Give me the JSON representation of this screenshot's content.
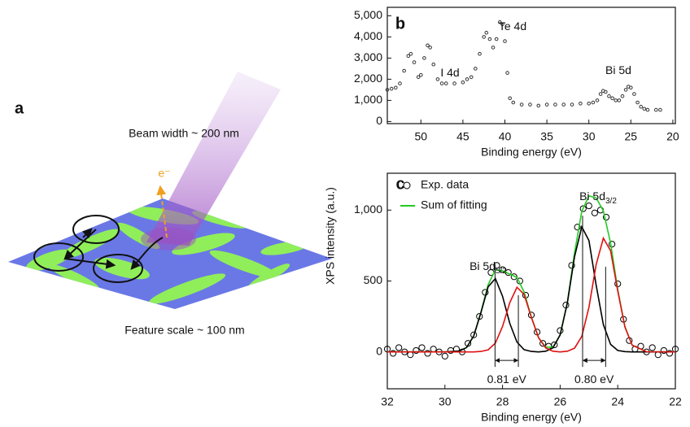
{
  "panel_a": {
    "label": "a",
    "beam": "Beam width ~ 200 nm",
    "electron": "e⁻",
    "feature": "Feature scale ~ 100 nm"
  },
  "chart_data": [
    {
      "type": "scatter",
      "panel_label": "b",
      "xlabel": "Binding energy (eV)",
      "xlim": [
        54,
        19.7
      ],
      "xticks": [
        50,
        45,
        40,
        35,
        30,
        25,
        20
      ],
      "ylim": [
        -100,
        5400
      ],
      "yticks": [
        0,
        {
          "value": 1000,
          "label": "1,000"
        },
        {
          "value": 2000,
          "label": "2,000"
        },
        {
          "value": 3000,
          "label": "3,000"
        },
        {
          "value": 4000,
          "label": "4,000"
        },
        {
          "value": 5000,
          "label": "5,000"
        }
      ],
      "series": [
        {
          "color": "#333333",
          "marker": "open-circle",
          "x": [
            54,
            53.5,
            53,
            52.5,
            52,
            51.5,
            51.2,
            50.8,
            50.3,
            50,
            49.6,
            49.2,
            48.9,
            48.5,
            48,
            47.5,
            47,
            46,
            45,
            44.5,
            44,
            43.5,
            43,
            42.5,
            42.2,
            41.8,
            41.4,
            41,
            40.6,
            40.3,
            40,
            39.7,
            39.4,
            39,
            38,
            37,
            36,
            35,
            34,
            33,
            32,
            31,
            30,
            29.5,
            29,
            28.6,
            28.3,
            28,
            27.6,
            27.2,
            26.8,
            26.4,
            26,
            25.6,
            25.3,
            25,
            24.6,
            24.2,
            23.8,
            23.4,
            23,
            22,
            21.5
          ],
          "values": [
            1500,
            1550,
            1600,
            1800,
            2400,
            3100,
            3200,
            2800,
            2100,
            2200,
            3000,
            3600,
            3500,
            2700,
            2000,
            1800,
            1800,
            1800,
            1850,
            2000,
            2100,
            2500,
            3200,
            4000,
            4200,
            3900,
            3500,
            3900,
            4700,
            4600,
            3800,
            2300,
            1100,
            900,
            800,
            800,
            750,
            800,
            800,
            800,
            800,
            850,
            850,
            900,
            1000,
            1300,
            1450,
            1400,
            1200,
            1100,
            1000,
            1000,
            1200,
            1500,
            1650,
            1600,
            1300,
            900,
            700,
            600,
            550,
            550,
            550
          ]
        }
      ],
      "annotations": [
        {
          "text": "I 4d"
        },
        {
          "text": "Te 4d"
        },
        {
          "text": "Bi 5d"
        }
      ]
    },
    {
      "type": "scatter",
      "panel_label": "c",
      "xlabel": "Binding energy (eV)",
      "ylabel": "XPS intensity (a.u.)",
      "xlim": [
        32,
        22
      ],
      "xticks": [
        32,
        30,
        28,
        26,
        24,
        22
      ],
      "ylim": [
        -260,
        1260
      ],
      "yticks": [
        0,
        500,
        {
          "value": 1000,
          "label": "1,000"
        }
      ],
      "legend": "upper left",
      "series": [
        {
          "name": "Exp. data",
          "color": "#000000",
          "marker": "open-circle",
          "x": [
            32,
            31.8,
            31.6,
            31.4,
            31.2,
            31,
            30.8,
            30.6,
            30.4,
            30.2,
            30,
            29.8,
            29.6,
            29.4,
            29.2,
            29,
            28.8,
            28.6,
            28.4,
            28.2,
            28,
            27.8,
            27.6,
            27.4,
            27.2,
            27,
            26.8,
            26.6,
            26.4,
            26.2,
            26,
            25.8,
            25.6,
            25.4,
            25.2,
            25,
            24.8,
            24.6,
            24.4,
            24.2,
            24,
            23.8,
            23.6,
            23.4,
            23.2,
            23,
            22.8,
            22.6,
            22.4,
            22.2,
            22
          ],
          "values": [
            20,
            -10,
            30,
            0,
            -20,
            10,
            30,
            -10,
            20,
            0,
            -30,
            10,
            20,
            0,
            60,
            120,
            250,
            420,
            560,
            610,
            580,
            560,
            530,
            500,
            400,
            260,
            140,
            60,
            40,
            50,
            150,
            330,
            610,
            880,
            1010,
            1030,
            980,
            1000,
            950,
            760,
            480,
            230,
            80,
            20,
            40,
            0,
            30,
            -20,
            10,
            -10,
            20
          ]
        },
        {
          "name": "Sum of fitting",
          "color": "#22cc22",
          "style": "line",
          "x": [
            32,
            30,
            29.5,
            29.25,
            29,
            28.75,
            28.5,
            28.25,
            28,
            27.75,
            27.5,
            27.25,
            27,
            26.75,
            26.5,
            26.25,
            26,
            25.75,
            25.5,
            25.25,
            25,
            24.75,
            24.5,
            24.25,
            24,
            23.75,
            23.5,
            23,
            22
          ],
          "values": [
            0,
            0,
            6,
            31,
            113,
            279,
            474,
            579,
            572,
            549,
            526,
            422,
            247,
            100,
            33,
            33,
            120,
            351,
            698,
            991,
            1100,
            1087,
            995,
            767,
            440,
            178,
            48,
            1,
            0
          ]
        },
        {
          "color": "#000000",
          "style": "line",
          "x": [
            32,
            30,
            29.5,
            29.25,
            29,
            28.75,
            28.5,
            28.25,
            28,
            27.75,
            27.5,
            27.25,
            27,
            26.75,
            26.5,
            26.25,
            26,
            25.75,
            25.5,
            25.25,
            25,
            24.75,
            24.5,
            24.25,
            24,
            23.75,
            23.5,
            23,
            22
          ],
          "values": [
            0,
            0,
            6,
            31,
            113,
            276,
            459,
            517,
            393,
            202,
            70,
            16,
            3,
            0,
            5,
            28,
            120,
            346,
            672,
            882,
            785,
            473,
            193,
            53,
            10,
            2,
            0,
            0,
            0
          ]
        },
        {
          "color": "#e01010",
          "style": "line",
          "x": [
            32,
            30,
            29.5,
            29.25,
            29,
            28.75,
            28.5,
            28.25,
            28,
            27.75,
            27.5,
            27.25,
            27,
            26.75,
            26.5,
            26.25,
            26,
            25.75,
            25.5,
            25.25,
            25,
            24.75,
            24.5,
            24.25,
            24,
            23.75,
            23.5,
            23,
            22
          ],
          "values": [
            0,
            0,
            0,
            0,
            0,
            3,
            15,
            62,
            179,
            347,
            456,
            406,
            244,
            100,
            28,
            5,
            0,
            5,
            26,
            109,
            315,
            614,
            802,
            714,
            430,
            176,
            48,
            1,
            0
          ]
        }
      ],
      "annotations": [
        {
          "text": "Bi 5d",
          "sub": "3/2"
        },
        {
          "text": "Bi 5d",
          "sub": "5/2"
        }
      ],
      "splits": [
        {
          "from": 28.26,
          "to": 27.45,
          "label": "0.81 eV"
        },
        {
          "from": 25.22,
          "to": 24.42,
          "label": "0.80 eV"
        }
      ]
    }
  ]
}
